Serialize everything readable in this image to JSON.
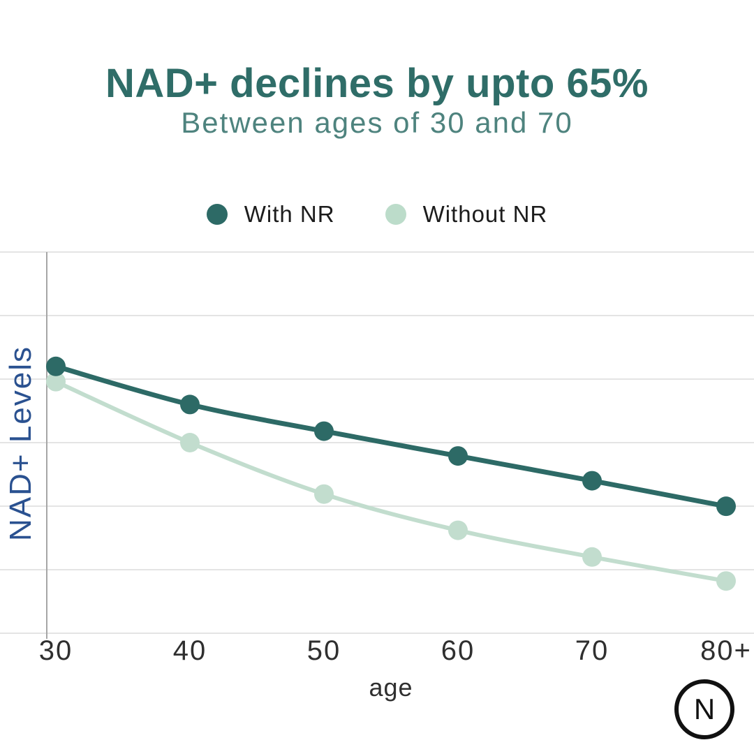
{
  "header": {
    "title": "NAD+ declines by upto 65%",
    "subtitle": "Between ages of 30 and 70"
  },
  "legend": [
    {
      "label": "With NR",
      "color": "#2d6a66"
    },
    {
      "label": "Without NR",
      "color": "#bcdcca"
    }
  ],
  "chart_data": {
    "type": "line",
    "categories": [
      "30",
      "40",
      "50",
      "60",
      "70",
      "80+"
    ],
    "series": [
      {
        "name": "With NR",
        "color": "#2d6a66",
        "values": [
          70,
          60,
          53,
          46.5,
          40,
          33.3
        ]
      },
      {
        "name": "Without NR",
        "color": "#c2ddce",
        "values": [
          66,
          50,
          36.5,
          27,
          20,
          13.7
        ]
      }
    ],
    "title": "NAD+ declines by upto 65%",
    "xlabel": "age",
    "ylabel": "NAD+ Levels",
    "ylim": [
      0,
      100
    ],
    "gridlines": 7,
    "grid": "horizontal",
    "legend_position": "top"
  },
  "logo": {
    "letter": "N"
  },
  "colors": {
    "title": "#2f6d68",
    "subtitle": "#4e837e",
    "ylabel": "#2a5190",
    "grid": "#dcdcdc",
    "axis": "#a6a6a6",
    "tick_text": "#2f2f2f",
    "legend_text": "#1c1c1c",
    "logo": "#111111"
  }
}
